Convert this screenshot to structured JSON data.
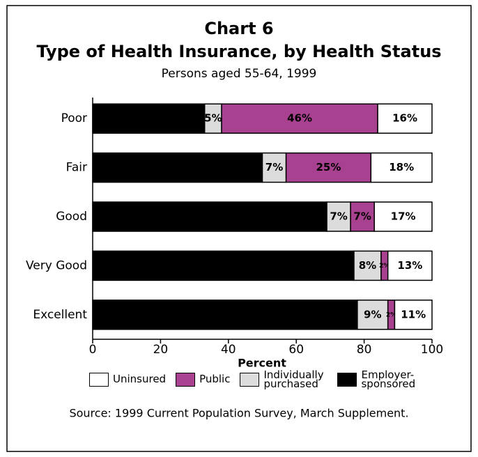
{
  "chart_data": {
    "type": "stacked_barh",
    "chart_number": "Chart 6",
    "title": "Type of Health Insurance, by Health Status",
    "subtitle": "Persons aged 55-64, 1999",
    "xlabel": "Percent",
    "source": "Source: 1999 Current Population Survey, March Supplement.",
    "categories": [
      "Poor",
      "Fair",
      "Good",
      "Very Good",
      "Excellent"
    ],
    "series": [
      {
        "name": "Employer-sponsored",
        "color": "#000000",
        "values": [
          33,
          50,
          69,
          77,
          78
        ],
        "value_labels": [
          "33%",
          "50%",
          "69%",
          "77%",
          "78%"
        ]
      },
      {
        "name": "Individually purchased",
        "color": "#dcdcdc",
        "values": [
          5,
          7,
          7,
          8,
          9
        ],
        "value_labels": [
          "5%",
          "7%",
          "7%",
          "8%",
          "9%"
        ]
      },
      {
        "name": "Public",
        "color": "#a8418f",
        "values": [
          46,
          25,
          7,
          2,
          2
        ],
        "value_labels": [
          "46%",
          "25%",
          "7%",
          "2%",
          "2%"
        ]
      },
      {
        "name": "Uninsured",
        "color": "#ffffff",
        "values": [
          16,
          18,
          17,
          13,
          11
        ],
        "value_labels": [
          "16%",
          "18%",
          "17%",
          "13%",
          "11%"
        ]
      }
    ],
    "xlim": [
      0,
      100
    ],
    "xticks": [
      0,
      20,
      40,
      60,
      80,
      100
    ]
  }
}
